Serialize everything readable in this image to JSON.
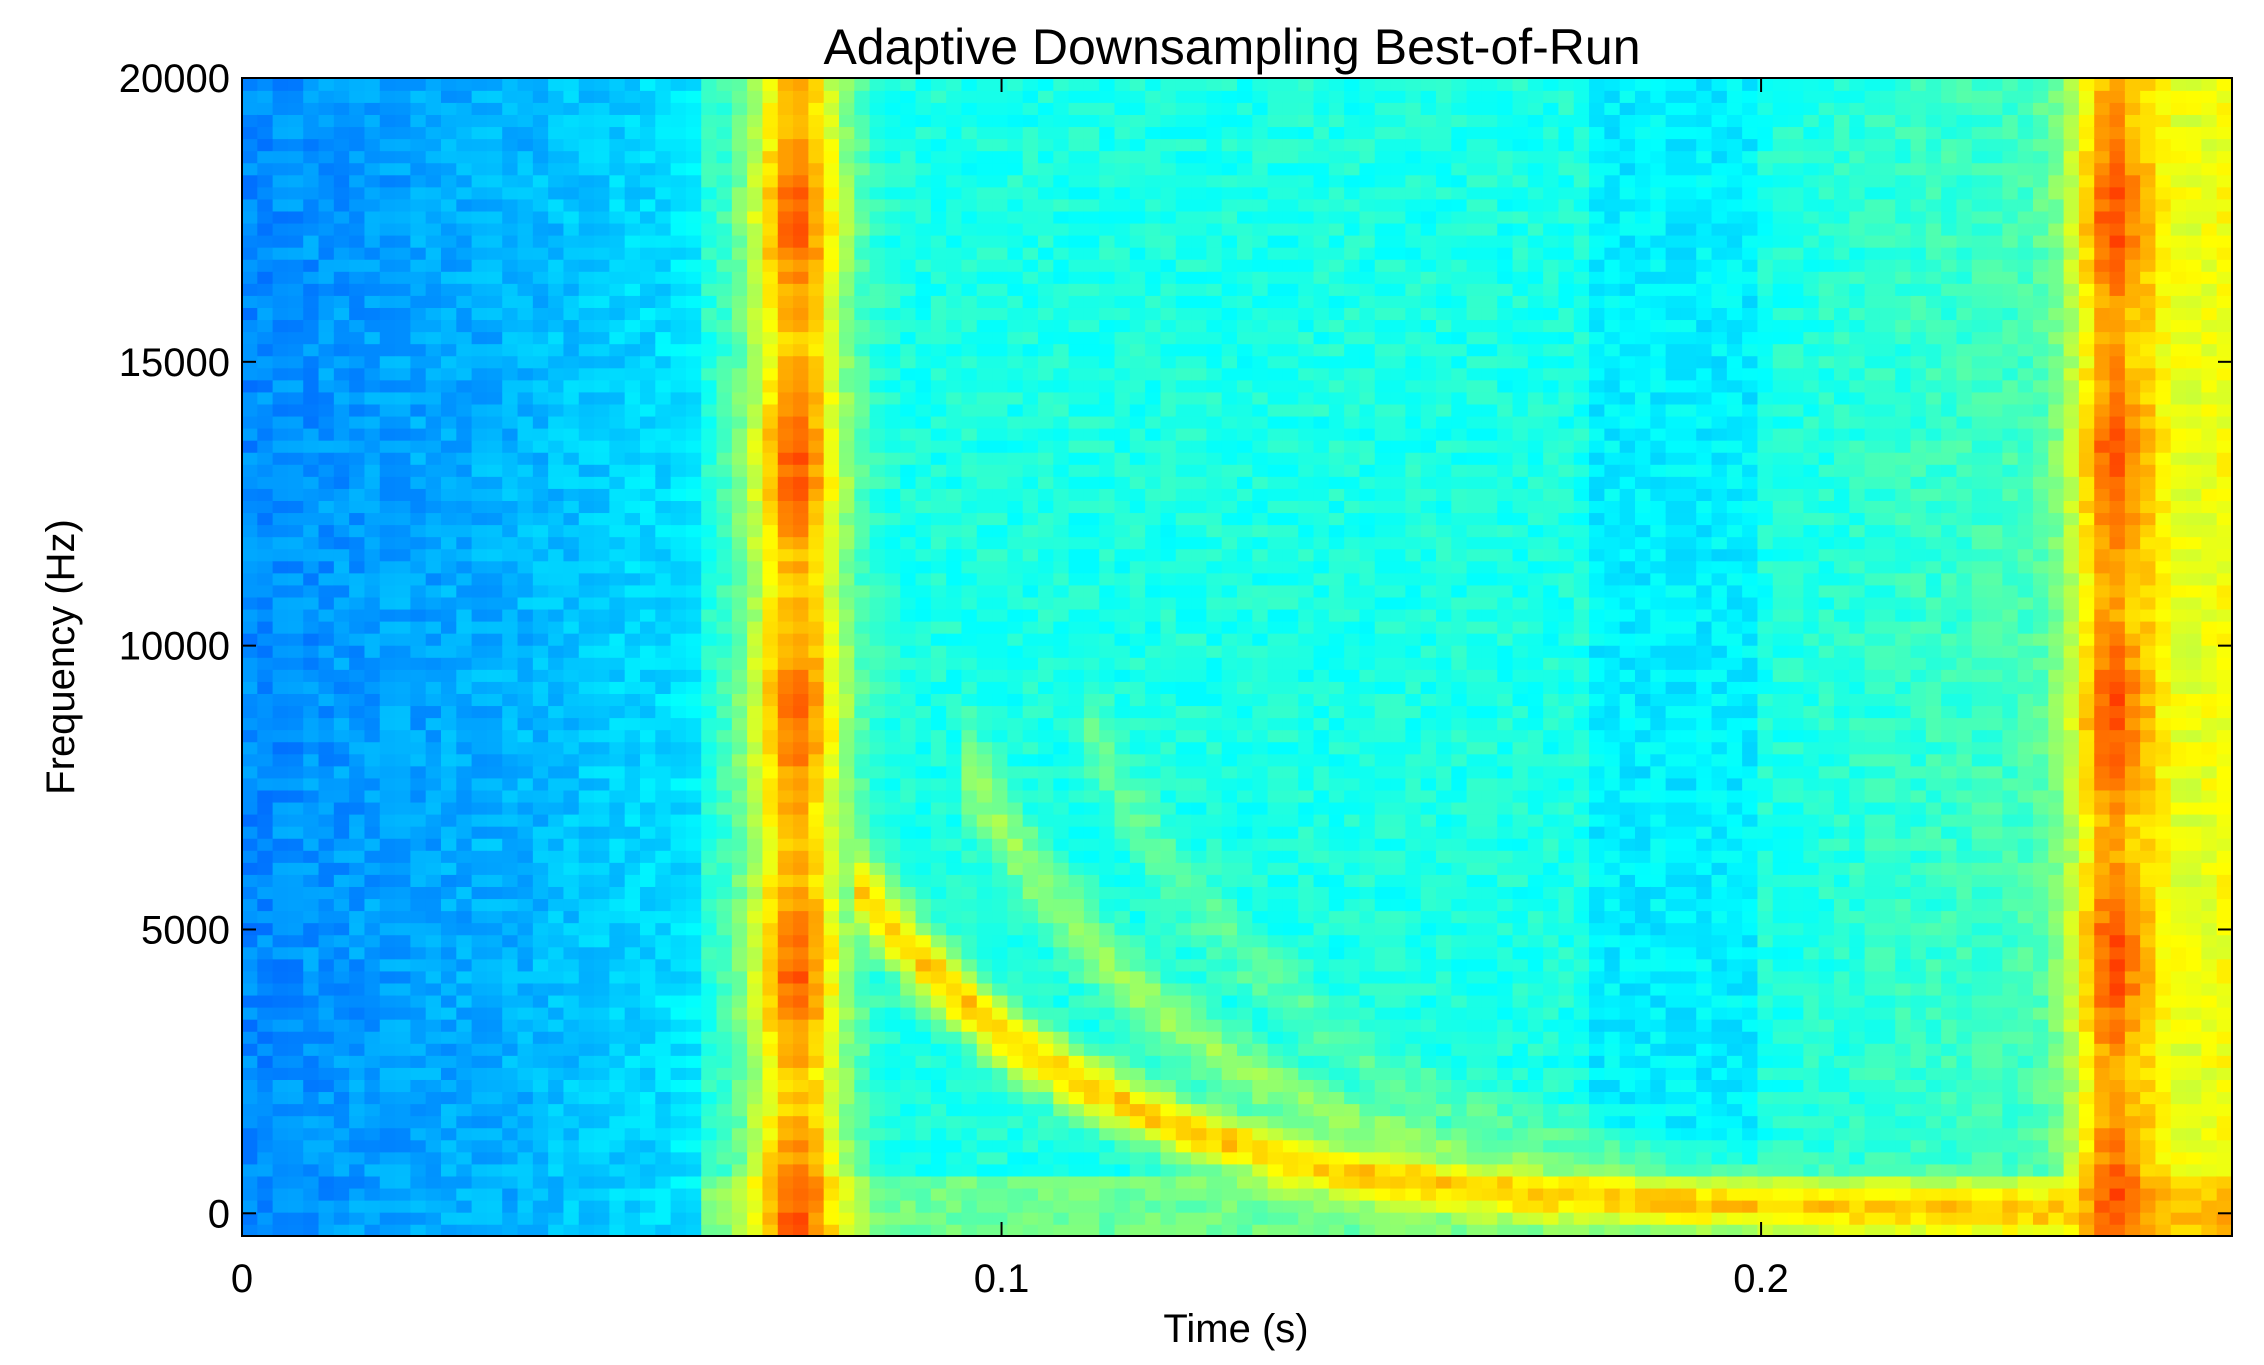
{
  "chart_data": {
    "type": "heatmap",
    "title": "Adaptive Downsampling Best-of-Run",
    "xlabel": "Time (s)",
    "ylabel": "Frequency (Hz)",
    "xlim": [
      0,
      0.262
    ],
    "ylim": [
      -400,
      20000
    ],
    "x_ticks": [
      0,
      0.1,
      0.2
    ],
    "x_tick_labels": [
      "0",
      "0.1",
      "0.2"
    ],
    "y_ticks": [
      0,
      5000,
      10000,
      15000,
      20000
    ],
    "y_tick_labels": [
      "0",
      "5000",
      "10000",
      "15000",
      "20000"
    ],
    "colormap": "jet",
    "grid": false,
    "legend": "none",
    "features": [
      {
        "kind": "vertical-band",
        "t_center": 0.073,
        "t_width": 0.0045,
        "level": 0.78
      },
      {
        "kind": "vertical-band",
        "t_center": 0.2465,
        "t_width": 0.004,
        "level": 0.8
      },
      {
        "kind": "chirp",
        "t_start": 0.08,
        "f_start": 6000,
        "f_end": 0,
        "level": 0.68
      },
      {
        "kind": "chirp",
        "t_start": 0.095,
        "f_start": 8000,
        "f_end": 0,
        "level": 0.52
      },
      {
        "kind": "chirp",
        "t_start": 0.11,
        "f_start": 9000,
        "f_end": 0,
        "level": 0.46
      }
    ]
  }
}
